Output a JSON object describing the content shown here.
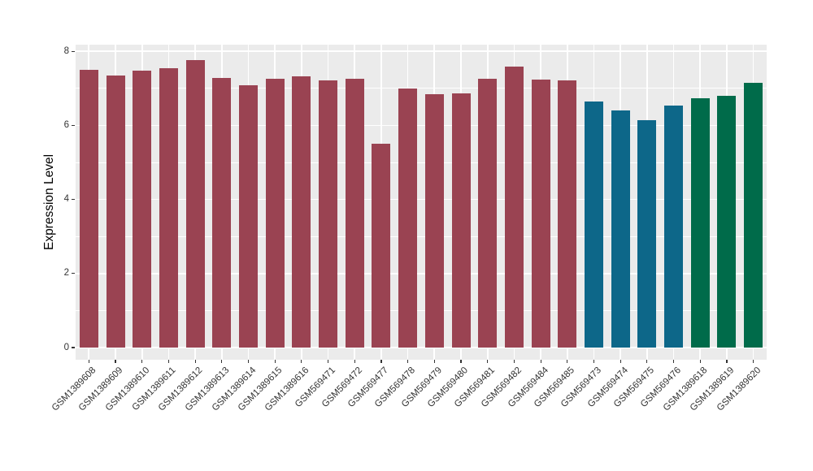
{
  "chart_data": {
    "type": "bar",
    "title": "",
    "xlabel": "",
    "ylabel": "Expression Level",
    "ylim": [
      0,
      8.2
    ],
    "yticks": [
      0,
      2,
      4,
      6,
      8
    ],
    "grid": "on",
    "legend_position": "none",
    "panel_background": "#EBEBEB",
    "grid_color": "#FFFFFF",
    "axis_text_color": "#333333",
    "axis_title_color": "#000000",
    "categories": [
      "GSM1389608",
      "GSM1389609",
      "GSM1389610",
      "GSM1389611",
      "GSM1389612",
      "GSM1389613",
      "GSM1389614",
      "GSM1389615",
      "GSM1389616",
      "GSM569471",
      "GSM569472",
      "GSM569477",
      "GSM569478",
      "GSM569479",
      "GSM569480",
      "GSM569481",
      "GSM569482",
      "GSM569484",
      "GSM569485",
      "GSM569473",
      "GSM569474",
      "GSM569475",
      "GSM569476",
      "GSM1389618",
      "GSM1389619",
      "GSM1389620"
    ],
    "values": [
      7.5,
      7.35,
      7.48,
      7.55,
      7.76,
      7.29,
      7.08,
      7.26,
      7.32,
      7.21,
      7.27,
      5.5,
      7.0,
      6.84,
      6.86,
      7.26,
      7.59,
      7.24,
      7.22,
      6.64,
      6.4,
      6.14,
      6.53,
      6.73,
      6.79,
      7.14
    ],
    "bar_colors": [
      "#9A4352",
      "#9A4352",
      "#9A4352",
      "#9A4352",
      "#9A4352",
      "#9A4352",
      "#9A4352",
      "#9A4352",
      "#9A4352",
      "#9A4352",
      "#9A4352",
      "#9A4352",
      "#9A4352",
      "#9A4352",
      "#9A4352",
      "#9A4352",
      "#9A4352",
      "#9A4352",
      "#9A4352",
      "#0D6789",
      "#0D6789",
      "#0D6789",
      "#0D6789",
      "#006B4A",
      "#006B4A",
      "#006B4A"
    ],
    "group_colors": {
      "maroon": "#9A4352",
      "teal": "#0D6789",
      "green": "#006B4A"
    }
  }
}
